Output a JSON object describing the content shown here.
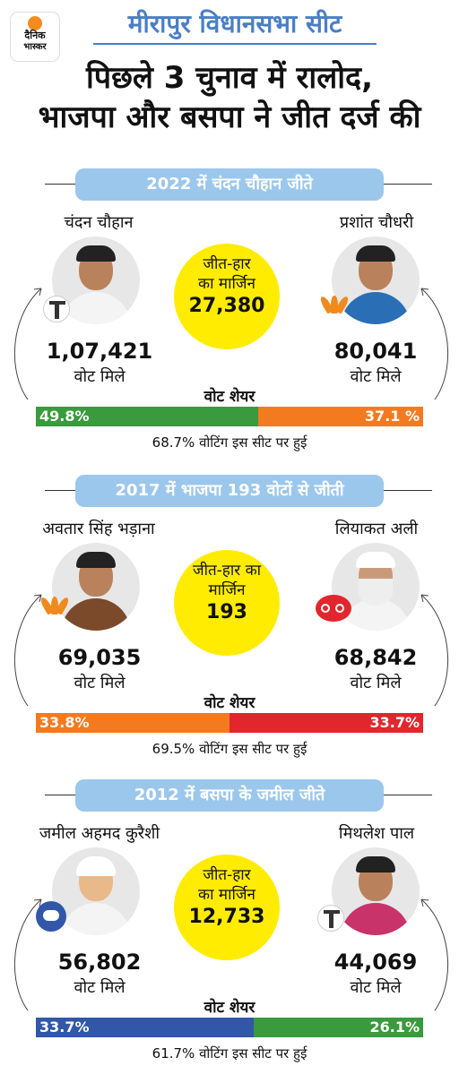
{
  "logo": {
    "line1": "दैनिक",
    "line2": "भास्कर"
  },
  "header": {
    "title": "मीरापुर विधानसभा सीट",
    "headline_line1": "पिछले 3 चुनाव में रालोद,",
    "headline_line2": "भाजपा और बसपा ने जीत दर्ज की"
  },
  "colors": {
    "pill": "#9cc7ec",
    "circle": "#ffec00",
    "title": "#4a7fc4"
  },
  "elections": [
    {
      "pill": "2022 में चंदन चौहान जीते",
      "left": {
        "name": "चंदन चौहान",
        "votes": "1,07,421",
        "votes_label": "वोट मिले",
        "symbol": "handpump-icon"
      },
      "right": {
        "name": "प्रशांत चौधरी",
        "votes": "80,041",
        "votes_label": "वोट मिले",
        "symbol": "lotus-icon"
      },
      "margin_label_1": "जीत-हार",
      "margin_label_2": "का मार्जिन",
      "margin": "27,380",
      "share_title": "वोट शेयर",
      "share_left": "49.8%",
      "share_right": "37.1 %",
      "share_left_value": 49.8,
      "share_right_value": 37.1,
      "color_left": "#3a9a3e",
      "color_right": "#f47a20",
      "turnout": "68.7% वोटिंग इस सीट पर हुई"
    },
    {
      "pill": "2017 में भाजपा 193 वोटों से जीती",
      "left": {
        "name": "अवतार सिंह भड़ाना",
        "votes": "69,035",
        "votes_label": "वोट मिले",
        "symbol": "lotus-icon"
      },
      "right": {
        "name": "लियाकत अली",
        "votes": "68,842",
        "votes_label": "वोट मिले",
        "symbol": "cycle-icon"
      },
      "margin_label_1": "जीत-हार का",
      "margin_label_2": "मार्जिन",
      "margin": "193",
      "share_title": "वोट शेयर",
      "share_left": "33.8%",
      "share_right": "33.7%",
      "share_left_value": 33.8,
      "share_right_value": 33.7,
      "color_left": "#f47a20",
      "color_right": "#e1262d",
      "turnout": "69.5% वोटिंग इस सीट पर हुई"
    },
    {
      "pill": "2012 में बसपा के जमील जीते",
      "left": {
        "name": "जमील अहमद कुरैशी",
        "votes": "56,802",
        "votes_label": "वोट मिले",
        "symbol": "elephant-icon"
      },
      "right": {
        "name": "मिथलेश पाल",
        "votes": "44,069",
        "votes_label": "वोट मिले",
        "symbol": "handpump-icon"
      },
      "margin_label_1": "जीत-हार",
      "margin_label_2": "का मार्जिन",
      "margin": "12,733",
      "share_title": "वोट शेयर",
      "share_left": "33.7%",
      "share_right": "26.1%",
      "share_left_value": 33.7,
      "share_right_value": 26.1,
      "color_left": "#3257a8",
      "color_right": "#3a9a3e",
      "turnout": "61.7% वोटिंग इस सीट पर हुई"
    }
  ]
}
